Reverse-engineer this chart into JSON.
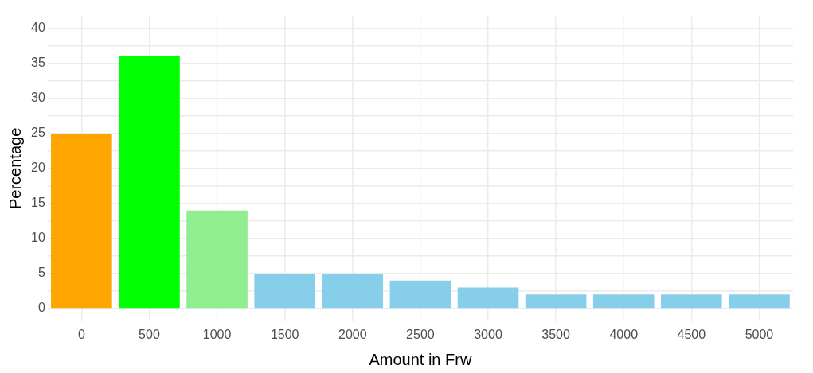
{
  "chart_data": {
    "type": "bar",
    "xlabel": "Amount in Frw",
    "ylabel": "Percentage",
    "categories": [
      "0",
      "500",
      "1000",
      "1500",
      "2000",
      "2500",
      "3000",
      "3500",
      "4000",
      "4500",
      "5000"
    ],
    "values": [
      25,
      36,
      14,
      5,
      5,
      4,
      3,
      2,
      2,
      2,
      2
    ],
    "colors": [
      "#ffa500",
      "#00ff00",
      "#90ee90",
      "#87ceeb",
      "#87ceeb",
      "#87ceeb",
      "#87ceeb",
      "#87ceeb",
      "#87ceeb",
      "#87ceeb",
      "#87ceeb"
    ],
    "ylim": [
      -1.8,
      41.8
    ],
    "yticks": [
      0,
      {
        "value": 2.5,
        "label": null
      },
      5,
      {
        "value": 7.5,
        "label": null
      },
      10,
      {
        "value": 12.5,
        "label": null
      },
      15,
      {
        "value": 17.5,
        "label": null
      },
      20,
      {
        "value": 22.5,
        "label": null
      },
      25,
      {
        "value": 27.5,
        "label": null
      },
      30,
      {
        "value": 32.5,
        "label": null
      },
      35,
      {
        "value": 37.5,
        "label": null
      },
      40
    ],
    "grid": true,
    "legend": false
  }
}
